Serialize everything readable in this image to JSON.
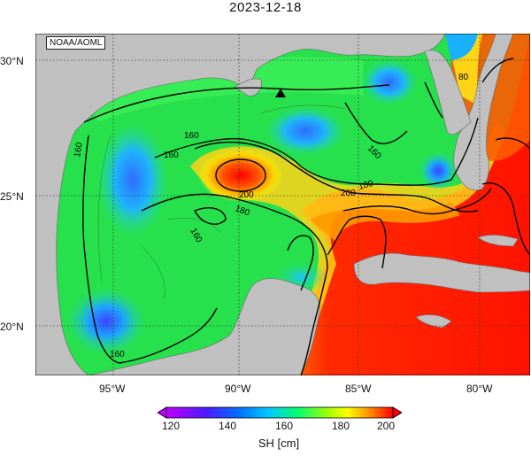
{
  "title": "2023-12-18",
  "source_label": "NOAA/AOML",
  "lat_labels": [
    "30°N",
    "25°N",
    "20°N"
  ],
  "lon_labels": [
    "95°W",
    "90°W",
    "85°W",
    "80°W"
  ],
  "contour_labels": [
    "160",
    "160",
    "160",
    "160",
    "200",
    "180",
    "200",
    "180",
    "160",
    "80",
    "160"
  ],
  "colorbar": {
    "label": "SH [cm]",
    "ticks": [
      "120",
      "140",
      "160",
      "180",
      "200"
    ],
    "range": [
      120,
      200
    ],
    "colors": [
      "#cc00ff",
      "#3300ff",
      "#00c8ff",
      "#00ff60",
      "#ffff00",
      "#ff7a00",
      "#ff0000"
    ]
  },
  "colors": {
    "land": "#c0c0c0",
    "high": "#ff1a00",
    "low": "#3aa0ff",
    "mid": "#22e04a",
    "marker": "#000000"
  },
  "marker_icon": "triangle-icon"
}
